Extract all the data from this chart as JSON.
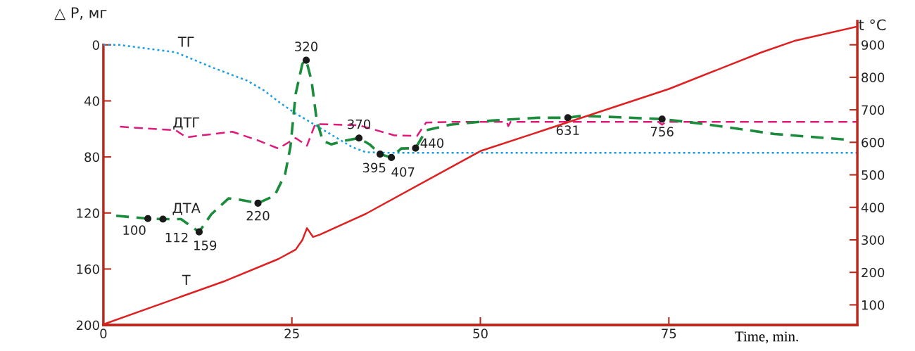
{
  "chart_data": {
    "type": "line",
    "xlabel": "Time, min.",
    "ylabel": "△ P, мг",
    "y2label": "t °C",
    "xlim": [
      0,
      100
    ],
    "xticks": [
      0,
      25,
      50,
      75
    ],
    "ylim": [
      200,
      -17
    ],
    "yticks": [
      0,
      40,
      80,
      120,
      160,
      200
    ],
    "y2lim": [
      38,
      973
    ],
    "y2ticks": [
      100,
      200,
      300,
      400,
      500,
      600,
      700,
      800,
      900
    ],
    "grid": false,
    "legend": false,
    "series": [
      {
        "name": "ТГ",
        "color": "#1a9fe0",
        "line_style": "dotted",
        "x": [
          0,
          2.1,
          9.6,
          14.3,
          19,
          21.3,
          23.6,
          25.5,
          27.4,
          30.2,
          33,
          34.8,
          37.6,
          100
        ],
        "values": [
          0,
          0,
          5.3,
          15.8,
          25.4,
          32.5,
          42,
          49,
          55,
          64,
          73,
          76.6,
          77,
          77
        ]
      },
      {
        "name": "ДТГ",
        "color": "#e0197d",
        "line_style": "dashed",
        "x": [
          2.2,
          9.6,
          11,
          12.4,
          17.1,
          20.4,
          23.2,
          25.5,
          27,
          28.1,
          33.9,
          38.6,
          41.6,
          42.8,
          46,
          53.5,
          53.7,
          54,
          73.6,
          74.1,
          74.6,
          100
        ],
        "values": [
          58.4,
          61,
          66,
          65,
          62,
          68,
          74,
          66.5,
          72,
          56.5,
          57.4,
          64.6,
          65,
          55.5,
          55,
          55,
          58,
          55,
          55,
          57,
          55,
          55
        ]
      },
      {
        "name": "ДТА",
        "color": "#1a8c3c",
        "line_style": "dashed",
        "x": [
          1.7,
          5.9,
          7.9,
          10.3,
          12.7,
          14.3,
          16.6,
          18,
          20.5,
          22.7,
          24.1,
          24.8,
          25.5,
          26.4,
          26.9,
          27.6,
          28.3,
          29.1,
          30.2,
          32,
          33.9,
          35.3,
          36.7,
          38.2,
          39.5,
          41.4,
          42.8,
          46,
          51.6,
          57.7,
          61.6,
          63.4,
          68.5,
          74.1,
          79.7,
          89,
          98.2
        ],
        "values": [
          122,
          124,
          124.4,
          124.4,
          133.5,
          121,
          109.6,
          110.5,
          113,
          107.7,
          92.3,
          73,
          35,
          13.4,
          11,
          25.4,
          54,
          68.4,
          71,
          68.4,
          66.5,
          71,
          78,
          80.4,
          74,
          73.7,
          61,
          57,
          54,
          52,
          52,
          50.7,
          51.7,
          53,
          56.5,
          63.6,
          67.5
        ]
      },
      {
        "name": "Т",
        "color": "#e02020",
        "line_style": "solid",
        "axis": "y2",
        "x": [
          0,
          16.2,
          23.2,
          25.5,
          26.4,
          27,
          27.8,
          28.7,
          34.8,
          50,
          75,
          87.2,
          91.8,
          100
        ],
        "values": [
          40,
          174,
          241,
          270,
          300,
          336,
          309,
          316,
          380,
          573,
          764,
          876,
          913,
          956
        ]
      },
      {
        "type": "scatter",
        "color": "#1a1a1a",
        "marker": "circle",
        "x": [
          5.9,
          7.9,
          12.7,
          20.5,
          26.9,
          33.9,
          36.7,
          38.2,
          41.4,
          61.6,
          74.1
        ],
        "values": [
          124,
          124.4,
          133.5,
          113,
          11,
          66.5,
          78,
          80.4,
          73.7,
          52,
          53
        ]
      }
    ],
    "annotations": [
      {
        "text": "100",
        "x": 5.9,
        "y": 124
      },
      {
        "text": "112",
        "x": 7.9,
        "y": 124.4
      },
      {
        "text": "159",
        "x": 12.7,
        "y": 133.5
      },
      {
        "text": "220",
        "x": 20.5,
        "y": 113
      },
      {
        "text": "320",
        "x": 26.9,
        "y": 11
      },
      {
        "text": "370",
        "x": 33.9,
        "y": 66.5
      },
      {
        "text": "395",
        "x": 36.7,
        "y": 78
      },
      {
        "text": "407",
        "x": 38.2,
        "y": 80.4
      },
      {
        "text": "440",
        "x": 41.4,
        "y": 73.7
      },
      {
        "text": "631",
        "x": 61.6,
        "y": 52
      },
      {
        "text": "756",
        "x": 74.1,
        "y": 53
      }
    ]
  }
}
